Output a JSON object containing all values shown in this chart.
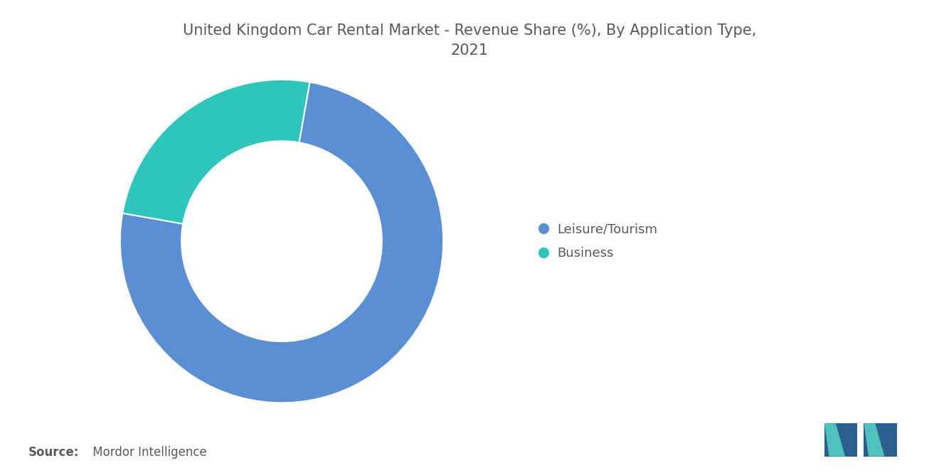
{
  "title": "United Kingdom Car Rental Market - Revenue Share (%), By Application Type,\n2021",
  "slices": [
    75,
    25
  ],
  "labels": [
    "Leisure/Tourism",
    "Business"
  ],
  "colors": [
    "#5B8FD4",
    "#2DC5BC"
  ],
  "background_color": "#ffffff",
  "title_color": "#595959",
  "legend_text_color": "#595959",
  "source_bold": "Source:",
  "source_text": " Mordor Intelligence",
  "donut_width": 0.38,
  "start_angle": 80,
  "title_fontsize": 15,
  "legend_fontsize": 13,
  "source_fontsize": 12
}
